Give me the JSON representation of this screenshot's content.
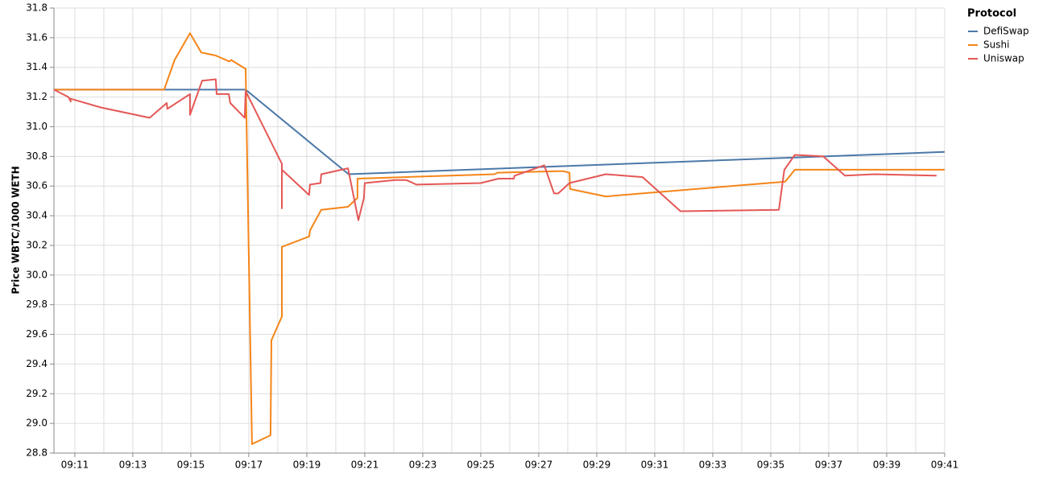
{
  "chart_data": {
    "type": "line",
    "y_label": "Price WBTC/1000 WETH",
    "legend_title": "Protocol",
    "legend": "top-right",
    "grid": true,
    "xlim": [
      10.28,
      41.0
    ],
    "xticks": [
      {
        "value": 11,
        "label": "09:11"
      },
      {
        "value": 13,
        "label": "09:13"
      },
      {
        "value": 15,
        "label": "09:15"
      },
      {
        "value": 17,
        "label": "09:17"
      },
      {
        "value": 19,
        "label": "09:19"
      },
      {
        "value": 21,
        "label": "09:21"
      },
      {
        "value": 23,
        "label": "09:23"
      },
      {
        "value": 25,
        "label": "09:25"
      },
      {
        "value": 27,
        "label": "09:27"
      },
      {
        "value": 29,
        "label": "09:29"
      },
      {
        "value": 31,
        "label": "09:31"
      },
      {
        "value": 33,
        "label": "09:33"
      },
      {
        "value": 35,
        "label": "09:35"
      },
      {
        "value": 37,
        "label": "09:37"
      },
      {
        "value": 39,
        "label": "09:39"
      },
      {
        "value": 41,
        "label": "09:41"
      }
    ],
    "xminorticks": [
      12,
      14,
      16,
      18,
      20,
      22,
      24,
      26,
      28,
      30,
      32,
      34,
      36,
      38,
      40
    ],
    "ylim": [
      28.8,
      31.8
    ],
    "yticks": [
      28.8,
      {
        "value": 29.0,
        "label": "29.0"
      },
      29.2,
      29.4,
      29.6,
      29.8,
      {
        "value": 30.0,
        "label": "30.0"
      },
      30.2,
      30.4,
      30.6,
      30.8,
      {
        "value": 31.0,
        "label": "31.0"
      },
      31.2,
      31.4,
      31.6,
      31.8
    ],
    "series": [
      {
        "name": "DefiSwap",
        "color": "#4c78a8",
        "x": [
          10.28,
          16.89,
          20.44,
          41.0
        ],
        "values": [
          31.25,
          31.25,
          30.68,
          30.83
        ]
      },
      {
        "name": "Sushi",
        "color": "#f58518",
        "x": [
          10.28,
          14.08,
          14.44,
          14.97,
          15.36,
          15.86,
          16.33,
          16.39,
          16.89,
          17.11,
          17.75,
          17.78,
          18.14,
          18.14,
          19.08,
          19.11,
          19.5,
          20.42,
          20.75,
          20.75,
          25.47,
          25.58,
          27.64,
          27.86,
          28.06,
          28.08,
          29.31,
          35.5,
          35.83,
          41.0
        ],
        "values": [
          31.25,
          31.25,
          31.45,
          31.63,
          31.5,
          31.48,
          31.44,
          31.45,
          31.39,
          28.86,
          28.92,
          29.56,
          29.72,
          30.19,
          30.26,
          30.3,
          30.44,
          30.46,
          30.52,
          30.65,
          30.68,
          30.69,
          30.7,
          30.7,
          30.69,
          30.58,
          30.53,
          30.63,
          30.71,
          30.71
        ]
      },
      {
        "name": "Uniswap",
        "color": "#e45756",
        "x": [
          10.28,
          10.78,
          10.86,
          10.83,
          11.89,
          13.58,
          14.17,
          14.19,
          14.97,
          14.97,
          15.39,
          15.86,
          15.89,
          16.31,
          16.36,
          16.86,
          16.89,
          18.14,
          18.14,
          18.14,
          19.08,
          19.11,
          19.47,
          19.5,
          20.42,
          20.78,
          20.97,
          21.0,
          22.03,
          22.44,
          22.78,
          25.0,
          25.61,
          26.14,
          26.17,
          27.19,
          27.53,
          27.67,
          28.06,
          29.31,
          30.58,
          31.89,
          35.28,
          35.47,
          35.83,
          36.81,
          37.56,
          38.58,
          40.72
        ],
        "values": [
          31.25,
          31.2,
          31.17,
          31.19,
          31.13,
          31.06,
          31.16,
          31.12,
          31.22,
          31.08,
          31.31,
          31.32,
          31.22,
          31.22,
          31.16,
          31.06,
          31.24,
          30.75,
          30.45,
          30.71,
          30.54,
          30.61,
          30.62,
          30.68,
          30.72,
          30.37,
          30.52,
          30.62,
          30.64,
          30.64,
          30.61,
          30.62,
          30.65,
          30.65,
          30.67,
          30.74,
          30.55,
          30.55,
          30.62,
          30.68,
          30.66,
          30.43,
          30.44,
          30.71,
          30.81,
          30.8,
          30.67,
          30.68,
          30.67
        ]
      }
    ]
  }
}
